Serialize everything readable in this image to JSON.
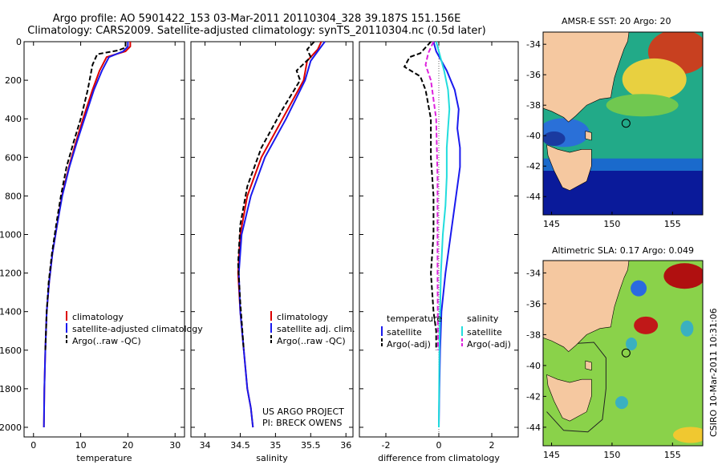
{
  "title_line1": "Argo profile: AO 5901422_153 03-Mar-2011 20110304_328 39.187S 151.156E",
  "title_line2": "Climatology: CARS2009. Satellite-adjusted climatology: synTS_20110304.nc (0.5d later)",
  "footer_line1": "US ARGO PROJECT",
  "footer_line2": "PI: BRECK OWENS",
  "side_label": "CSIRO 10-Mar-2011 10:31:06",
  "colors": {
    "climatology": "#dd0000",
    "satellite": "#1a1aee",
    "argo": "#000000",
    "sal_satellite": "#22dddd",
    "sal_argo": "#dd22dd",
    "land": "#f5c8a0"
  },
  "chart_data": [
    {
      "type": "line",
      "xlabel": "temperature",
      "xlim": [
        -2,
        32
      ],
      "xticks": [
        0,
        10,
        20,
        30
      ],
      "ylim": [
        0,
        2050
      ],
      "yticks": [
        0,
        200,
        400,
        600,
        800,
        1000,
        1200,
        1400,
        1600,
        1800,
        2000
      ],
      "legend": [
        "climatology",
        "satellite-adjusted climatology",
        "Argo(..raw -QC)"
      ],
      "series": [
        {
          "name": "climatology",
          "style": "solid",
          "color": "#dd0000",
          "x": [
            20.5,
            20.5,
            19.5,
            15.5,
            14.0,
            12.5,
            10.5,
            9.0,
            7.5,
            6.0,
            5.0,
            4.0,
            3.3,
            2.8,
            2.5,
            2.3,
            2.2
          ],
          "y": [
            0,
            25,
            50,
            80,
            150,
            250,
            400,
            520,
            650,
            800,
            950,
            1100,
            1250,
            1400,
            1600,
            1800,
            2000
          ]
        },
        {
          "name": "satellite-adjusted climatology",
          "style": "solid",
          "color": "#1a1aee",
          "x": [
            20.0,
            20.0,
            19.0,
            16.0,
            14.5,
            12.8,
            10.8,
            9.2,
            7.6,
            6.1,
            5.0,
            4.0,
            3.3,
            2.8,
            2.5,
            2.3,
            2.2
          ],
          "y": [
            0,
            25,
            50,
            80,
            150,
            250,
            400,
            520,
            650,
            800,
            950,
            1100,
            1250,
            1400,
            1600,
            1800,
            2000
          ]
        },
        {
          "name": "Argo(..raw -QC)",
          "style": "dashed",
          "color": "#000000",
          "x": [
            19.5,
            19.5,
            18.0,
            13.5,
            12.5,
            11.5,
            10.0,
            8.5,
            7.0,
            5.8,
            4.8,
            3.9,
            3.2,
            2.8,
            2.5
          ],
          "y": [
            0,
            30,
            45,
            65,
            120,
            250,
            400,
            520,
            650,
            800,
            950,
            1100,
            1250,
            1400,
            1600
          ]
        }
      ]
    },
    {
      "type": "line",
      "xlabel": "salinity",
      "xlim": [
        33.8,
        36.1
      ],
      "xticks": [
        34,
        34.5,
        35,
        35.5,
        36
      ],
      "ylim": [
        0,
        2050
      ],
      "legend": [
        "climatology",
        "satellite adj. clim.",
        "Argo(..raw -QC)"
      ],
      "series": [
        {
          "name": "climatology",
          "style": "solid",
          "color": "#dd0000",
          "x": [
            35.65,
            35.6,
            35.45,
            35.4,
            35.1,
            34.8,
            34.6,
            34.5,
            34.47,
            34.5,
            34.55,
            34.6,
            34.65,
            34.68
          ],
          "y": [
            0,
            40,
            100,
            200,
            400,
            600,
            800,
            1000,
            1200,
            1400,
            1600,
            1800,
            1900,
            2000
          ]
        },
        {
          "name": "satellite adj. clim.",
          "style": "solid",
          "color": "#1a1aee",
          "x": [
            35.7,
            35.62,
            35.5,
            35.42,
            35.15,
            34.85,
            34.65,
            34.52,
            34.48,
            34.5,
            34.55,
            34.6,
            34.65,
            34.68
          ],
          "y": [
            0,
            40,
            100,
            200,
            400,
            600,
            800,
            1000,
            1200,
            1400,
            1600,
            1800,
            1900,
            2000
          ]
        },
        {
          "name": "Argo(..raw -QC)",
          "style": "dashed",
          "color": "#000000",
          "x": [
            35.55,
            35.45,
            35.5,
            35.3,
            35.35,
            35.1,
            34.8,
            34.6,
            34.5,
            34.47,
            34.5,
            34.55
          ],
          "y": [
            0,
            40,
            80,
            150,
            200,
            350,
            550,
            750,
            950,
            1150,
            1350,
            1600
          ]
        }
      ]
    },
    {
      "type": "line",
      "xlabel": "difference from climatology",
      "xlim": [
        -3,
        3
      ],
      "xticks": [
        -2,
        0,
        2
      ],
      "ylim": [
        0,
        2050
      ],
      "legend_groups": [
        {
          "header": "temperature",
          "entries": [
            "satellite",
            "Argo(-adj)"
          ]
        },
        {
          "header": "salinity",
          "entries": [
            "satellite",
            "Argo(-adj)"
          ]
        }
      ],
      "series": [
        {
          "name": "temperature satellite",
          "style": "solid",
          "color": "#1a1aee",
          "x": [
            -0.2,
            -0.1,
            0.3,
            0.6,
            0.75,
            0.7,
            0.8,
            0.8,
            0.75,
            0.65,
            0.45,
            0.25,
            0.1,
            0.05,
            0.02,
            0.0
          ],
          "y": [
            0,
            50,
            150,
            250,
            350,
            450,
            550,
            650,
            700,
            800,
            1000,
            1200,
            1400,
            1600,
            1800,
            2000
          ]
        },
        {
          "name": "salinity satellite",
          "style": "solid",
          "color": "#22dddd",
          "x": [
            -0.1,
            0.0,
            0.2,
            0.35,
            0.4,
            0.35,
            0.3,
            0.3,
            0.25,
            0.15,
            0.08,
            0.05,
            0.02,
            0.0
          ],
          "y": [
            0,
            50,
            150,
            250,
            350,
            450,
            550,
            700,
            850,
            1000,
            1200,
            1400,
            1600,
            2000
          ]
        },
        {
          "name": "temperature Argo(-adj)",
          "style": "dashed",
          "color": "#000000",
          "x": [
            -0.3,
            -0.5,
            -0.7,
            -1.1,
            -1.3,
            -0.7,
            -0.5,
            -0.3,
            -0.3,
            -0.2,
            -0.2,
            -0.3,
            -0.25,
            -0.2,
            -0.1,
            -0.1
          ],
          "y": [
            0,
            30,
            60,
            80,
            130,
            180,
            250,
            400,
            600,
            800,
            1000,
            1200,
            1300,
            1400,
            1500,
            1600
          ]
        },
        {
          "name": "salinity Argo(-adj)",
          "style": "dashed",
          "color": "#dd22dd",
          "x": [
            -0.2,
            -0.3,
            -0.4,
            -0.5,
            -0.3,
            -0.1,
            -0.05,
            -0.05,
            -0.03
          ],
          "y": [
            0,
            30,
            60,
            120,
            200,
            400,
            700,
            1200,
            1600
          ]
        }
      ]
    }
  ],
  "maps": [
    {
      "title": "AMSR-E SST: 20 Argo: 20",
      "lon_ticks": [
        145,
        150,
        155
      ],
      "lat_ticks": [
        -34,
        -36,
        -38,
        -40,
        -42,
        -44
      ],
      "float_lon": 151.156,
      "float_lat": -39.187
    },
    {
      "title": "Altimetric SLA: 0.17 Argo: 0.049",
      "lon_ticks": [
        145,
        150,
        155
      ],
      "lat_ticks": [
        -34,
        -36,
        -38,
        -40,
        -42,
        -44
      ],
      "float_lon": 151.156,
      "float_lat": -39.187
    }
  ]
}
